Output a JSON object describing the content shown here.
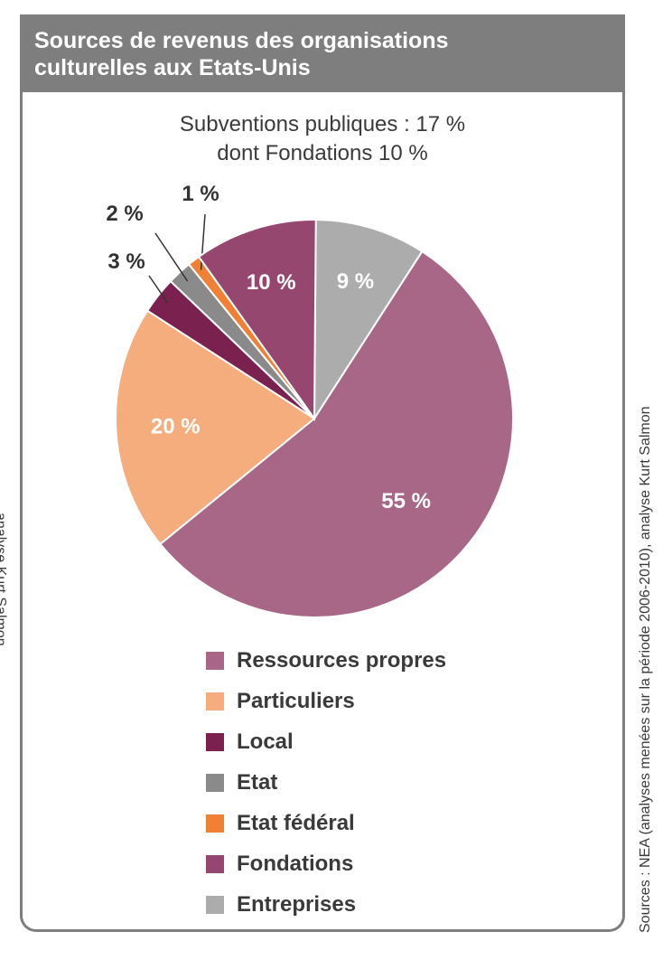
{
  "header": {
    "title": "Sources de revenus des organisations\nculturelles aux Etats-Unis"
  },
  "subtitle": {
    "line1": "Subventions publiques : 17 %",
    "line2": "dont Fondations 10 %"
  },
  "source_note": "Sources : NEA (analyses menées sur la période 2006-2010), analyse Kurt Salmon",
  "left_edge_note": "analyse Kurt Salmon",
  "chart_data": {
    "type": "pie",
    "title": "Sources de revenus des organisations culturelles aux Etats-Unis",
    "unit": "%",
    "slices": [
      {
        "name": "Ressources propres",
        "value": 55,
        "label": "55 %",
        "color": "#a86786"
      },
      {
        "name": "Particuliers",
        "value": 20,
        "label": "20 %",
        "color": "#f5ad7e"
      },
      {
        "name": "Local",
        "value": 3,
        "label": "3 %",
        "color": "#7a2150"
      },
      {
        "name": "Etat",
        "value": 2,
        "label": "2 %",
        "color": "#8a8a8a"
      },
      {
        "name": "Etat fédéral",
        "value": 1,
        "label": "1 %",
        "color": "#ef8034"
      },
      {
        "name": "Fondations",
        "value": 10,
        "label": "10 %",
        "color": "#96476f"
      },
      {
        "name": "Entreprises",
        "value": 9,
        "label": "9 %",
        "color": "#acacac"
      }
    ],
    "legend_placement": "bottom"
  }
}
